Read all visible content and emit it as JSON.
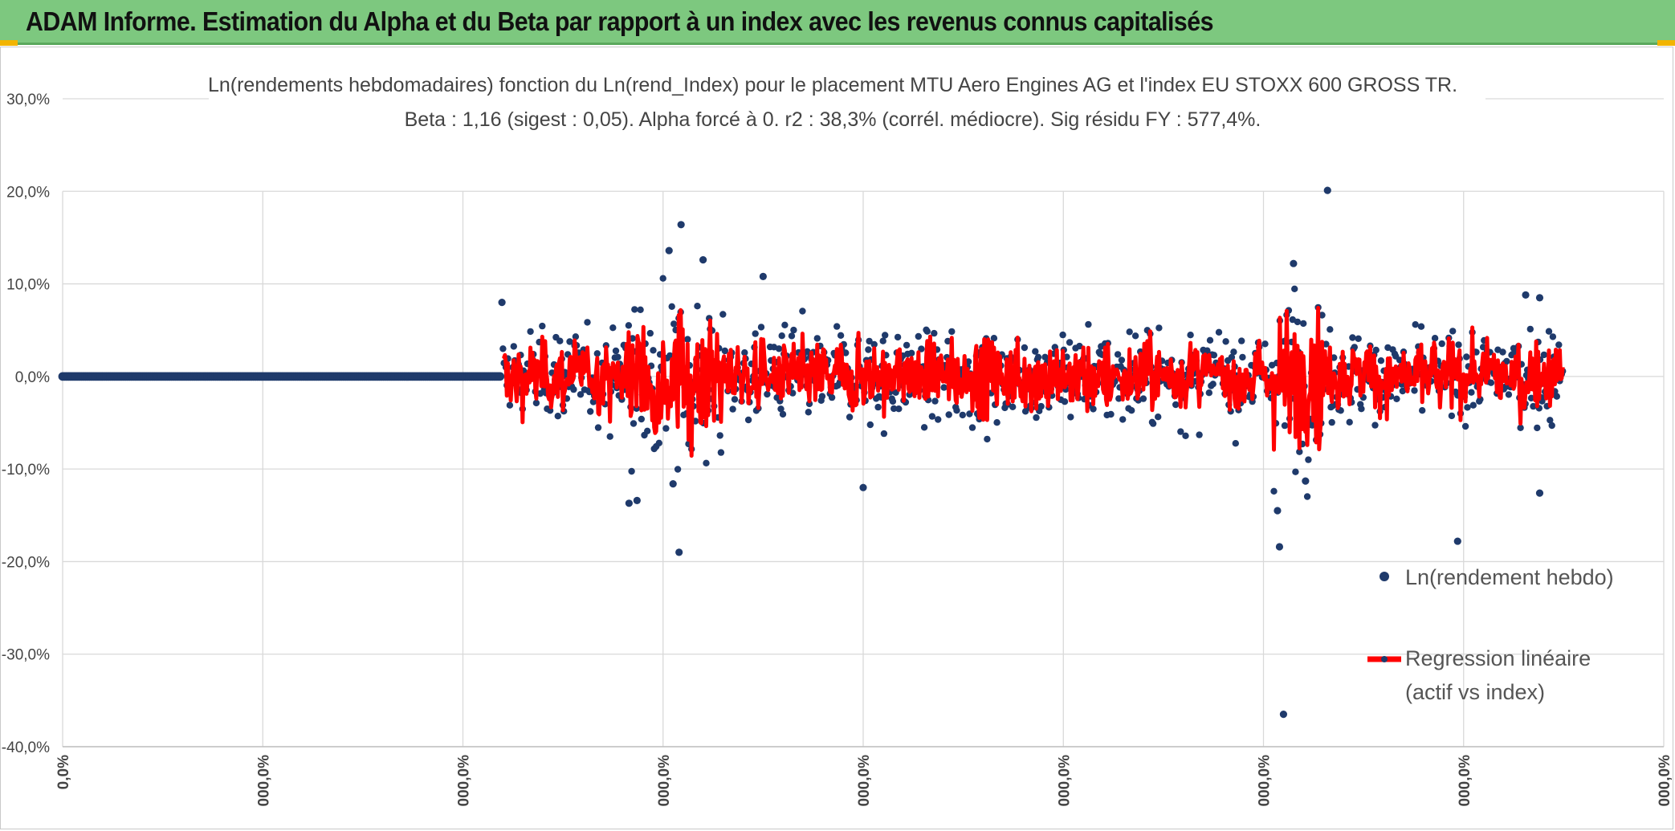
{
  "header": {
    "title": "ADAM Informe. Estimation du Alpha et du Beta par rapport à un index avec les revenus connus capitalisés",
    "background_color": "#7DC87F"
  },
  "chart_data": {
    "type": "scatter",
    "title": "Ln(rendements hebdomadaires) fonction du Ln(rend_Index) pour le placement MTU Aero Engines AG et l'index EU STOXX 600 GROSS TR.",
    "subtitle": "Beta : 1,16 (sigest : 0,05). Alpha forcé à 0. r2 : 38,3% (corrél. médiocre). Sig résidu FY : 577,4%.",
    "y_ticks": [
      "30,0%",
      "20,0%",
      "10,0%",
      "0,0%",
      "-10,0%",
      "-20,0%",
      "-30,0%",
      "-40,0%"
    ],
    "y_tick_values": [
      30,
      20,
      10,
      0,
      -10,
      -20,
      -30,
      -40
    ],
    "ylim": [
      -40,
      30
    ],
    "x_ticks": [
      "0,0%",
      "000,0%",
      "000,0%",
      "000,0%",
      "000,0%",
      "000,0%",
      "000,0%",
      "000,0%",
      "000,0%"
    ],
    "xlim": [
      0,
      8
    ],
    "grid": true,
    "legend_position": "right",
    "series": [
      {
        "name": "Ln(rendement hebdo)",
        "kind": "scatter",
        "color": "#1F3A6B",
        "notable_points": [
          {
            "x": 2.195,
            "y": 8.0
          },
          {
            "x": 3.03,
            "y": 13.6
          },
          {
            "x": 3.09,
            "y": 16.4
          },
          {
            "x": 3.05,
            "y": -11.6
          },
          {
            "x": 3.08,
            "y": -19.0
          },
          {
            "x": 2.83,
            "y": -13.7
          },
          {
            "x": 2.87,
            "y": -13.4
          },
          {
            "x": 3.2,
            "y": 12.6
          },
          {
            "x": 3.5,
            "y": 10.8
          },
          {
            "x": 4.0,
            "y": -12.0
          },
          {
            "x": 6.1,
            "y": -36.5
          },
          {
            "x": 6.08,
            "y": -18.4
          },
          {
            "x": 6.07,
            "y": -14.5
          },
          {
            "x": 6.32,
            "y": 20.1
          },
          {
            "x": 6.15,
            "y": 12.2
          },
          {
            "x": 6.21,
            "y": -11.3
          },
          {
            "x": 6.97,
            "y": -17.8
          },
          {
            "x": 7.38,
            "y": -12.6
          },
          {
            "x": 7.31,
            "y": 8.8
          },
          {
            "x": 7.38,
            "y": 8.5
          }
        ]
      },
      {
        "name": "Regression linéaire\n(actif vs index)",
        "kind": "line",
        "color": "#FF0000"
      }
    ],
    "legend": {
      "entries": [
        "Ln(rendement hebdo)",
        "Regression linéaire",
        "(actif vs index)"
      ]
    }
  }
}
